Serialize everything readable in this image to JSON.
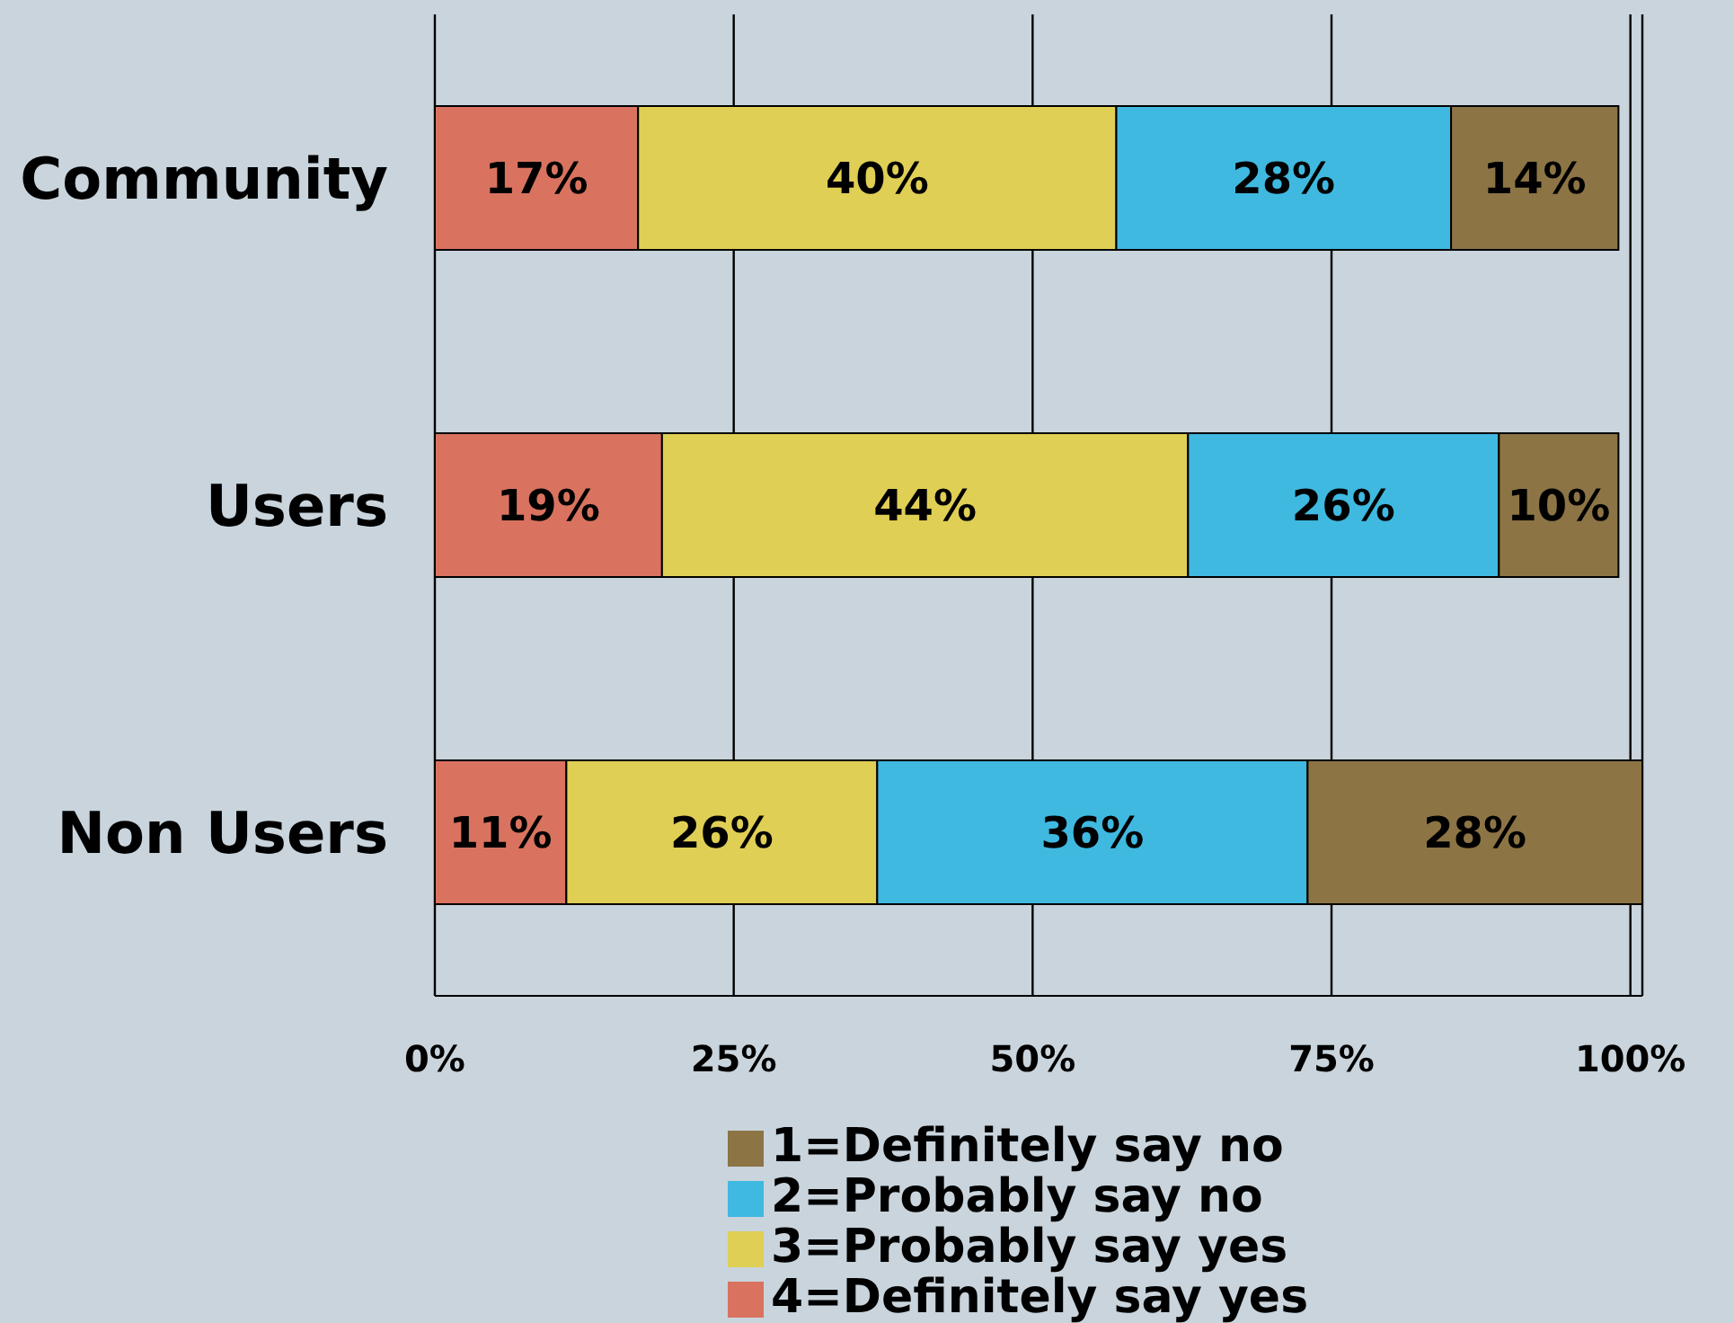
{
  "chart_data": {
    "type": "bar",
    "orientation": "horizontal",
    "stacked": true,
    "categories": [
      "Community",
      "Users",
      "Non Users"
    ],
    "series": [
      {
        "name": "4=Definitely say yes",
        "color": "#d9735f",
        "values": [
          17,
          19,
          11
        ],
        "value_labels": [
          "17%",
          "19%",
          "11%"
        ]
      },
      {
        "name": "3=Probably say yes",
        "color": "#e0cf55",
        "values": [
          40,
          44,
          26
        ],
        "value_labels": [
          "40%",
          "44%",
          "26%"
        ]
      },
      {
        "name": "2=Probably say no",
        "color": "#3fb9e0",
        "values": [
          28,
          26,
          36
        ],
        "value_labels": [
          "28%",
          "26%",
          "36%"
        ]
      },
      {
        "name": "1=Definitely say no",
        "color": "#8c7445",
        "values": [
          14,
          10,
          28
        ],
        "value_labels": [
          "14%",
          "10%",
          "28%"
        ]
      }
    ],
    "xlim": [
      0,
      101
    ],
    "xticks": [
      {
        "value": 0,
        "label": "0%"
      },
      {
        "value": 25,
        "label": "25%"
      },
      {
        "value": 50,
        "label": "50%"
      },
      {
        "value": 75,
        "label": "75%"
      },
      {
        "value": 100,
        "label": "100%"
      }
    ],
    "grid": "x",
    "legend": "bottom"
  }
}
